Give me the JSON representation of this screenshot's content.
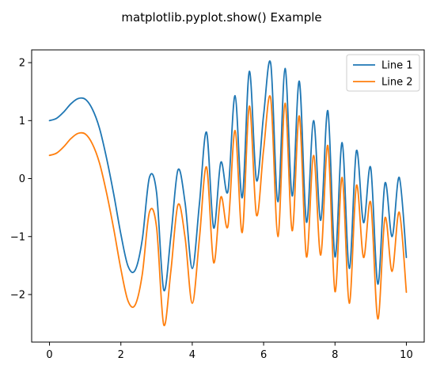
{
  "chart_data": {
    "type": "line",
    "title": "matplotlib.pyplot.show() Example",
    "xlabel": "",
    "ylabel": "",
    "xlim": [
      -0.5,
      10.5
    ],
    "ylim": [
      -2.82,
      2.22
    ],
    "xticks": [
      0,
      2,
      4,
      6,
      8,
      10
    ],
    "xtick_labels": [
      "0",
      "2",
      "4",
      "6",
      "8",
      "10"
    ],
    "yticks": [
      2,
      1,
      0,
      -1,
      -2
    ],
    "ytick_labels": [
      "2",
      "1",
      "0",
      "−1",
      "−2"
    ],
    "grid": false,
    "legend_position": "top-right",
    "x": [
      0.0,
      0.2,
      0.4,
      0.6,
      0.8,
      1.0,
      1.2,
      1.4,
      1.6,
      1.8,
      2.0,
      2.2,
      2.4,
      2.6,
      2.8,
      3.0,
      3.2,
      3.4,
      3.6,
      3.8,
      4.0,
      4.2,
      4.4,
      4.6,
      4.8,
      5.0,
      5.2,
      5.4,
      5.6,
      5.8,
      6.0,
      6.2,
      6.4,
      6.6,
      6.8,
      7.0,
      7.2,
      7.4,
      7.6,
      7.8,
      8.0,
      8.2,
      8.4,
      8.6,
      8.8,
      9.0,
      9.2,
      9.4,
      9.6,
      9.8,
      10.0
    ],
    "series": [
      {
        "name": "Line 1",
        "color": "#1f77b4",
        "values": [
          1.0,
          1.04,
          1.15,
          1.29,
          1.38,
          1.37,
          1.2,
          0.87,
          0.35,
          -0.27,
          -0.96,
          -1.51,
          -1.58,
          -1.05,
          0.02,
          -0.24,
          -1.92,
          -1.0,
          0.15,
          -0.42,
          -1.55,
          -0.44,
          0.8,
          -0.85,
          0.28,
          -0.22,
          1.43,
          -0.33,
          1.85,
          -0.03,
          1.1,
          1.98,
          -0.4,
          1.9,
          -0.3,
          1.68,
          -0.75,
          1.0,
          -0.72,
          1.17,
          -1.35,
          0.62,
          -1.55,
          0.48,
          -0.76,
          0.19,
          -1.82,
          -0.08,
          -1.0,
          0.02,
          -1.36
        ]
      },
      {
        "name": "Line 2",
        "color": "#ff7f0e",
        "values": [
          0.4,
          0.44,
          0.55,
          0.69,
          0.78,
          0.77,
          0.6,
          0.27,
          -0.25,
          -0.87,
          -1.56,
          -2.11,
          -2.18,
          -1.65,
          -0.58,
          -0.84,
          -2.52,
          -1.6,
          -0.45,
          -1.02,
          -2.15,
          -1.04,
          0.2,
          -1.45,
          -0.32,
          -0.82,
          0.83,
          -0.93,
          1.25,
          -0.63,
          0.5,
          1.38,
          -1.0,
          1.3,
          -0.9,
          1.08,
          -1.35,
          0.4,
          -1.32,
          0.57,
          -1.95,
          0.02,
          -2.15,
          -0.12,
          -1.36,
          -0.41,
          -2.42,
          -0.68,
          -1.6,
          -0.58,
          -1.96
        ]
      }
    ]
  }
}
